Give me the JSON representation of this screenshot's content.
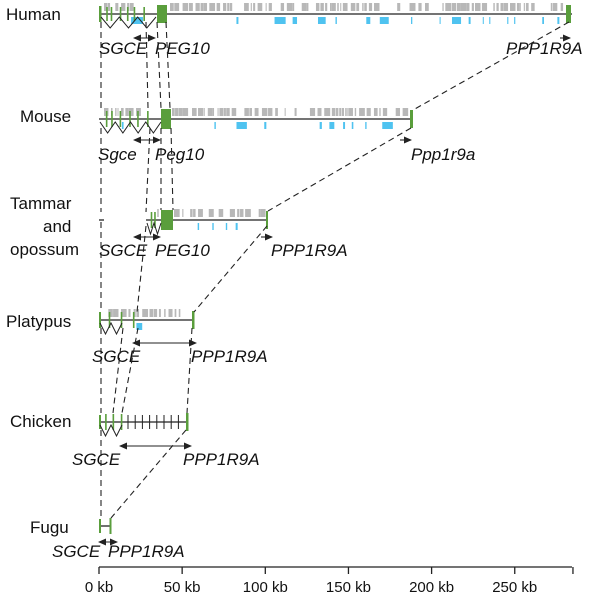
{
  "axis": {
    "unit": "kb",
    "max_kb": 285,
    "ticks": [
      {
        "value": 0,
        "label": "0 kb"
      },
      {
        "value": 50,
        "label": "50 kb"
      },
      {
        "value": 100,
        "label": "100 kb"
      },
      {
        "value": 150,
        "label": "150 kb"
      },
      {
        "value": 200,
        "label": "200 kb"
      },
      {
        "value": 250,
        "label": "250 kb"
      }
    ]
  },
  "colors": {
    "gene": "#5a9e3c",
    "repeat_grey": "#b8b8b8",
    "repeat_blue": "#4fc3f0",
    "line": "#222222"
  },
  "species": [
    {
      "name": "Human",
      "genes": [
        {
          "label": "SGCE"
        },
        {
          "label": "PEG10"
        },
        {
          "label": "PPP1R9A"
        }
      ]
    },
    {
      "name": "Mouse",
      "genes": [
        {
          "label": "Sgce"
        },
        {
          "label": "Peg10"
        },
        {
          "label": "Ppp1r9a"
        }
      ]
    },
    {
      "name": "Tammar\nand\nopossum",
      "name_lines": [
        "Tammar",
        "and",
        "opossum"
      ],
      "genes": [
        {
          "label": "SGCE"
        },
        {
          "label": "PEG10"
        },
        {
          "label": "PPP1R9A"
        }
      ]
    },
    {
      "name": "Platypus",
      "genes": [
        {
          "label": "SGCE"
        },
        {
          "label": "PPP1R9A"
        }
      ]
    },
    {
      "name": "Chicken",
      "genes": [
        {
          "label": "SGCE"
        },
        {
          "label": "PPP1R9A"
        }
      ]
    },
    {
      "name": "Fugu",
      "genes": [
        {
          "label": "SGCE"
        },
        {
          "label": "PPP1R9A"
        }
      ]
    }
  ]
}
